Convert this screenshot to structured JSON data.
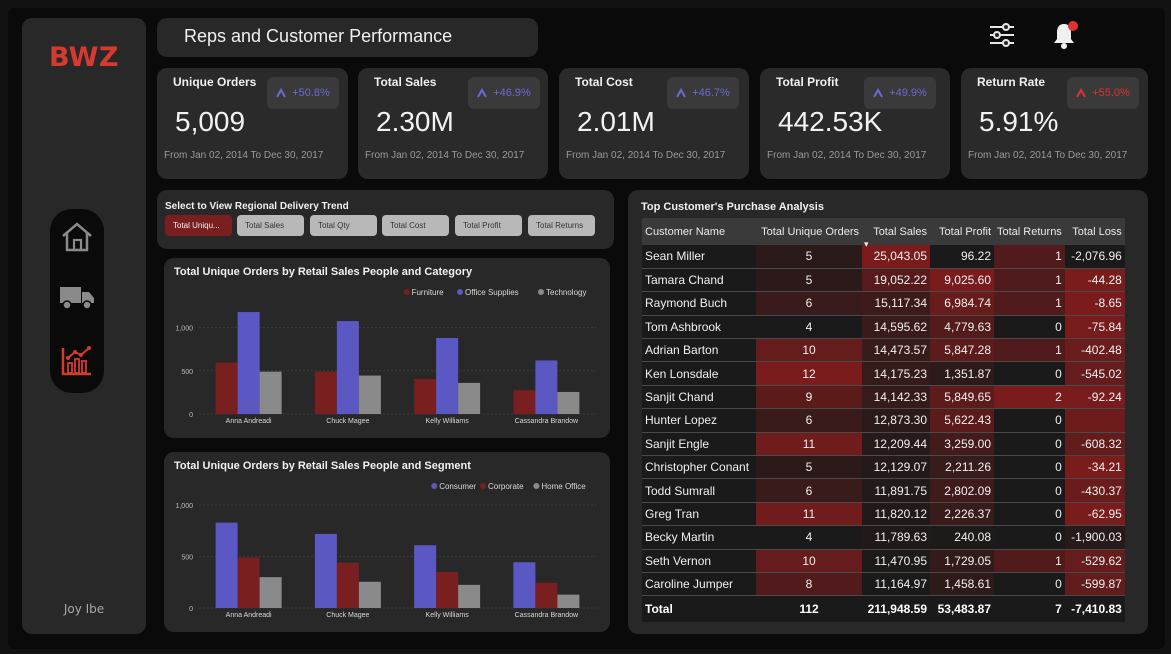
{
  "logo": "BWZ",
  "title": "Reps and Customer Performance",
  "author": "Joy Ibe",
  "colors": {
    "accent_red": "#d63a2f",
    "up_blue": "#6a6ad6",
    "up_red": "#e03030"
  },
  "nav": [
    {
      "icon": "home-icon"
    },
    {
      "icon": "truck-icon"
    },
    {
      "icon": "line-chart-icon"
    }
  ],
  "header_icons": [
    "sliders-icon",
    "bell-icon"
  ],
  "kpis": [
    {
      "label": "Unique Orders",
      "value": "5,009",
      "change": "+50.8%",
      "trend_color": "#6a6ad6",
      "footer": "From Jan 02, 2014 To Dec 30, 2017"
    },
    {
      "label": "Total Sales",
      "value": "2.30M",
      "change": "+46.9%",
      "trend_color": "#6a6ad6",
      "footer": "From Jan 02, 2014 To Dec 30, 2017"
    },
    {
      "label": "Total Cost",
      "value": "2.01M",
      "change": "+46.7%",
      "trend_color": "#6a6ad6",
      "footer": "From Jan 02, 2014 To Dec 30, 2017"
    },
    {
      "label": "Total Profit",
      "value": "442.53K",
      "change": "+49.9%",
      "trend_color": "#6a6ad6",
      "footer": "From Jan 02, 2014 To Dec 30, 2017"
    },
    {
      "label": "Return Rate",
      "value": "5.91%",
      "change": "+55.0%",
      "trend_color": "#e03030",
      "footer": "From Jan 02, 2014 To Dec 30, 2017"
    }
  ],
  "selector": {
    "title": "Select to View Regional Delivery Trend",
    "buttons": [
      "Total Uniqu...",
      "Total Sales",
      "Total Qty",
      "Total Cost",
      "Total Profit",
      "Total Returns"
    ],
    "active_index": 0
  },
  "chart_data": [
    {
      "type": "bar",
      "title": "Total Unique Orders by Retail Sales People and Category",
      "categories": [
        "Anna Andreadi",
        "Chuck Magee",
        "Kelly Williams",
        "Cassandra Brandow"
      ],
      "series": [
        {
          "name": "Furniture",
          "color": "#7a1f1f",
          "values": [
            595,
            490,
            405,
            275
          ]
        },
        {
          "name": "Office Supplies",
          "color": "#5b58c4",
          "values": [
            1180,
            1075,
            880,
            620
          ]
        },
        {
          "name": "Technology",
          "color": "#8a8a8a",
          "values": [
            490,
            445,
            360,
            255
          ]
        }
      ],
      "yticks": [
        "0",
        "500",
        "1,000"
      ],
      "ylim": [
        0,
        1250
      ],
      "legend": "top-right",
      "grid": true
    },
    {
      "type": "bar",
      "title": "Total Unique Orders by Retail Sales People and Segment",
      "categories": [
        "Anna Andreadi",
        "Chuck Magee",
        "Kelly Williams",
        "Cassandra Brandow"
      ],
      "series": [
        {
          "name": "Consumer",
          "color": "#5b58c4",
          "values": [
            830,
            720,
            610,
            445
          ]
        },
        {
          "name": "Corporate",
          "color": "#7a1f1f",
          "values": [
            490,
            440,
            350,
            245
          ]
        },
        {
          "name": "Home Office",
          "color": "#8a8a8a",
          "values": [
            300,
            255,
            225,
            130
          ]
        }
      ],
      "yticks": [
        "0",
        "500",
        "1,000"
      ],
      "ylim": [
        0,
        1050
      ],
      "legend": "top-right",
      "grid": true
    },
    {
      "type": "table",
      "title": "Top Customer's Purchase Analysis",
      "columns": [
        "Customer Name",
        "Total Unique Orders",
        "Total Sales",
        "Total Profit",
        "Total Returns",
        "Total Loss"
      ],
      "sorted_column": "Total Sales",
      "rows": [
        [
          "Sean Miller",
          "5",
          "25,043.05",
          "96.22",
          "1",
          "-2,076.96"
        ],
        [
          "Tamara Chand",
          "5",
          "19,052.22",
          "9,025.60",
          "1",
          "-44.28"
        ],
        [
          "Raymond Buch",
          "6",
          "15,117.34",
          "6,984.74",
          "1",
          "-8.65"
        ],
        [
          "Tom Ashbrook",
          "4",
          "14,595.62",
          "4,779.63",
          "0",
          "-75.84"
        ],
        [
          "Adrian Barton",
          "10",
          "14,473.57",
          "5,847.28",
          "1",
          "-402.48"
        ],
        [
          "Ken Lonsdale",
          "12",
          "14,175.23",
          "1,351.87",
          "0",
          "-545.02"
        ],
        [
          "Sanjit Chand",
          "9",
          "14,142.33",
          "5,849.65",
          "2",
          "-92.24"
        ],
        [
          "Hunter Lopez",
          "6",
          "12,873.30",
          "5,622.43",
          "0",
          ""
        ],
        [
          "Sanjit Engle",
          "11",
          "12,209.44",
          "3,259.00",
          "0",
          "-608.32"
        ],
        [
          "Christopher Conant",
          "5",
          "12,129.07",
          "2,211.26",
          "0",
          "-34.21"
        ],
        [
          "Todd Sumrall",
          "6",
          "11,891.75",
          "2,802.09",
          "0",
          "-430.37"
        ],
        [
          "Greg Tran",
          "11",
          "11,820.12",
          "2,226.37",
          "0",
          "-62.95"
        ],
        [
          "Becky Martin",
          "4",
          "11,789.63",
          "240.08",
          "0",
          "-1,900.03"
        ],
        [
          "Seth Vernon",
          "10",
          "11,470.95",
          "1,729.05",
          "1",
          "-529.62"
        ],
        [
          "Caroline Jumper",
          "8",
          "11,164.97",
          "1,458.61",
          "0",
          "-599.87"
        ]
      ],
      "totals": [
        "Total",
        "112",
        "211,948.59",
        "53,483.87",
        "7",
        "-7,410.83"
      ]
    }
  ]
}
